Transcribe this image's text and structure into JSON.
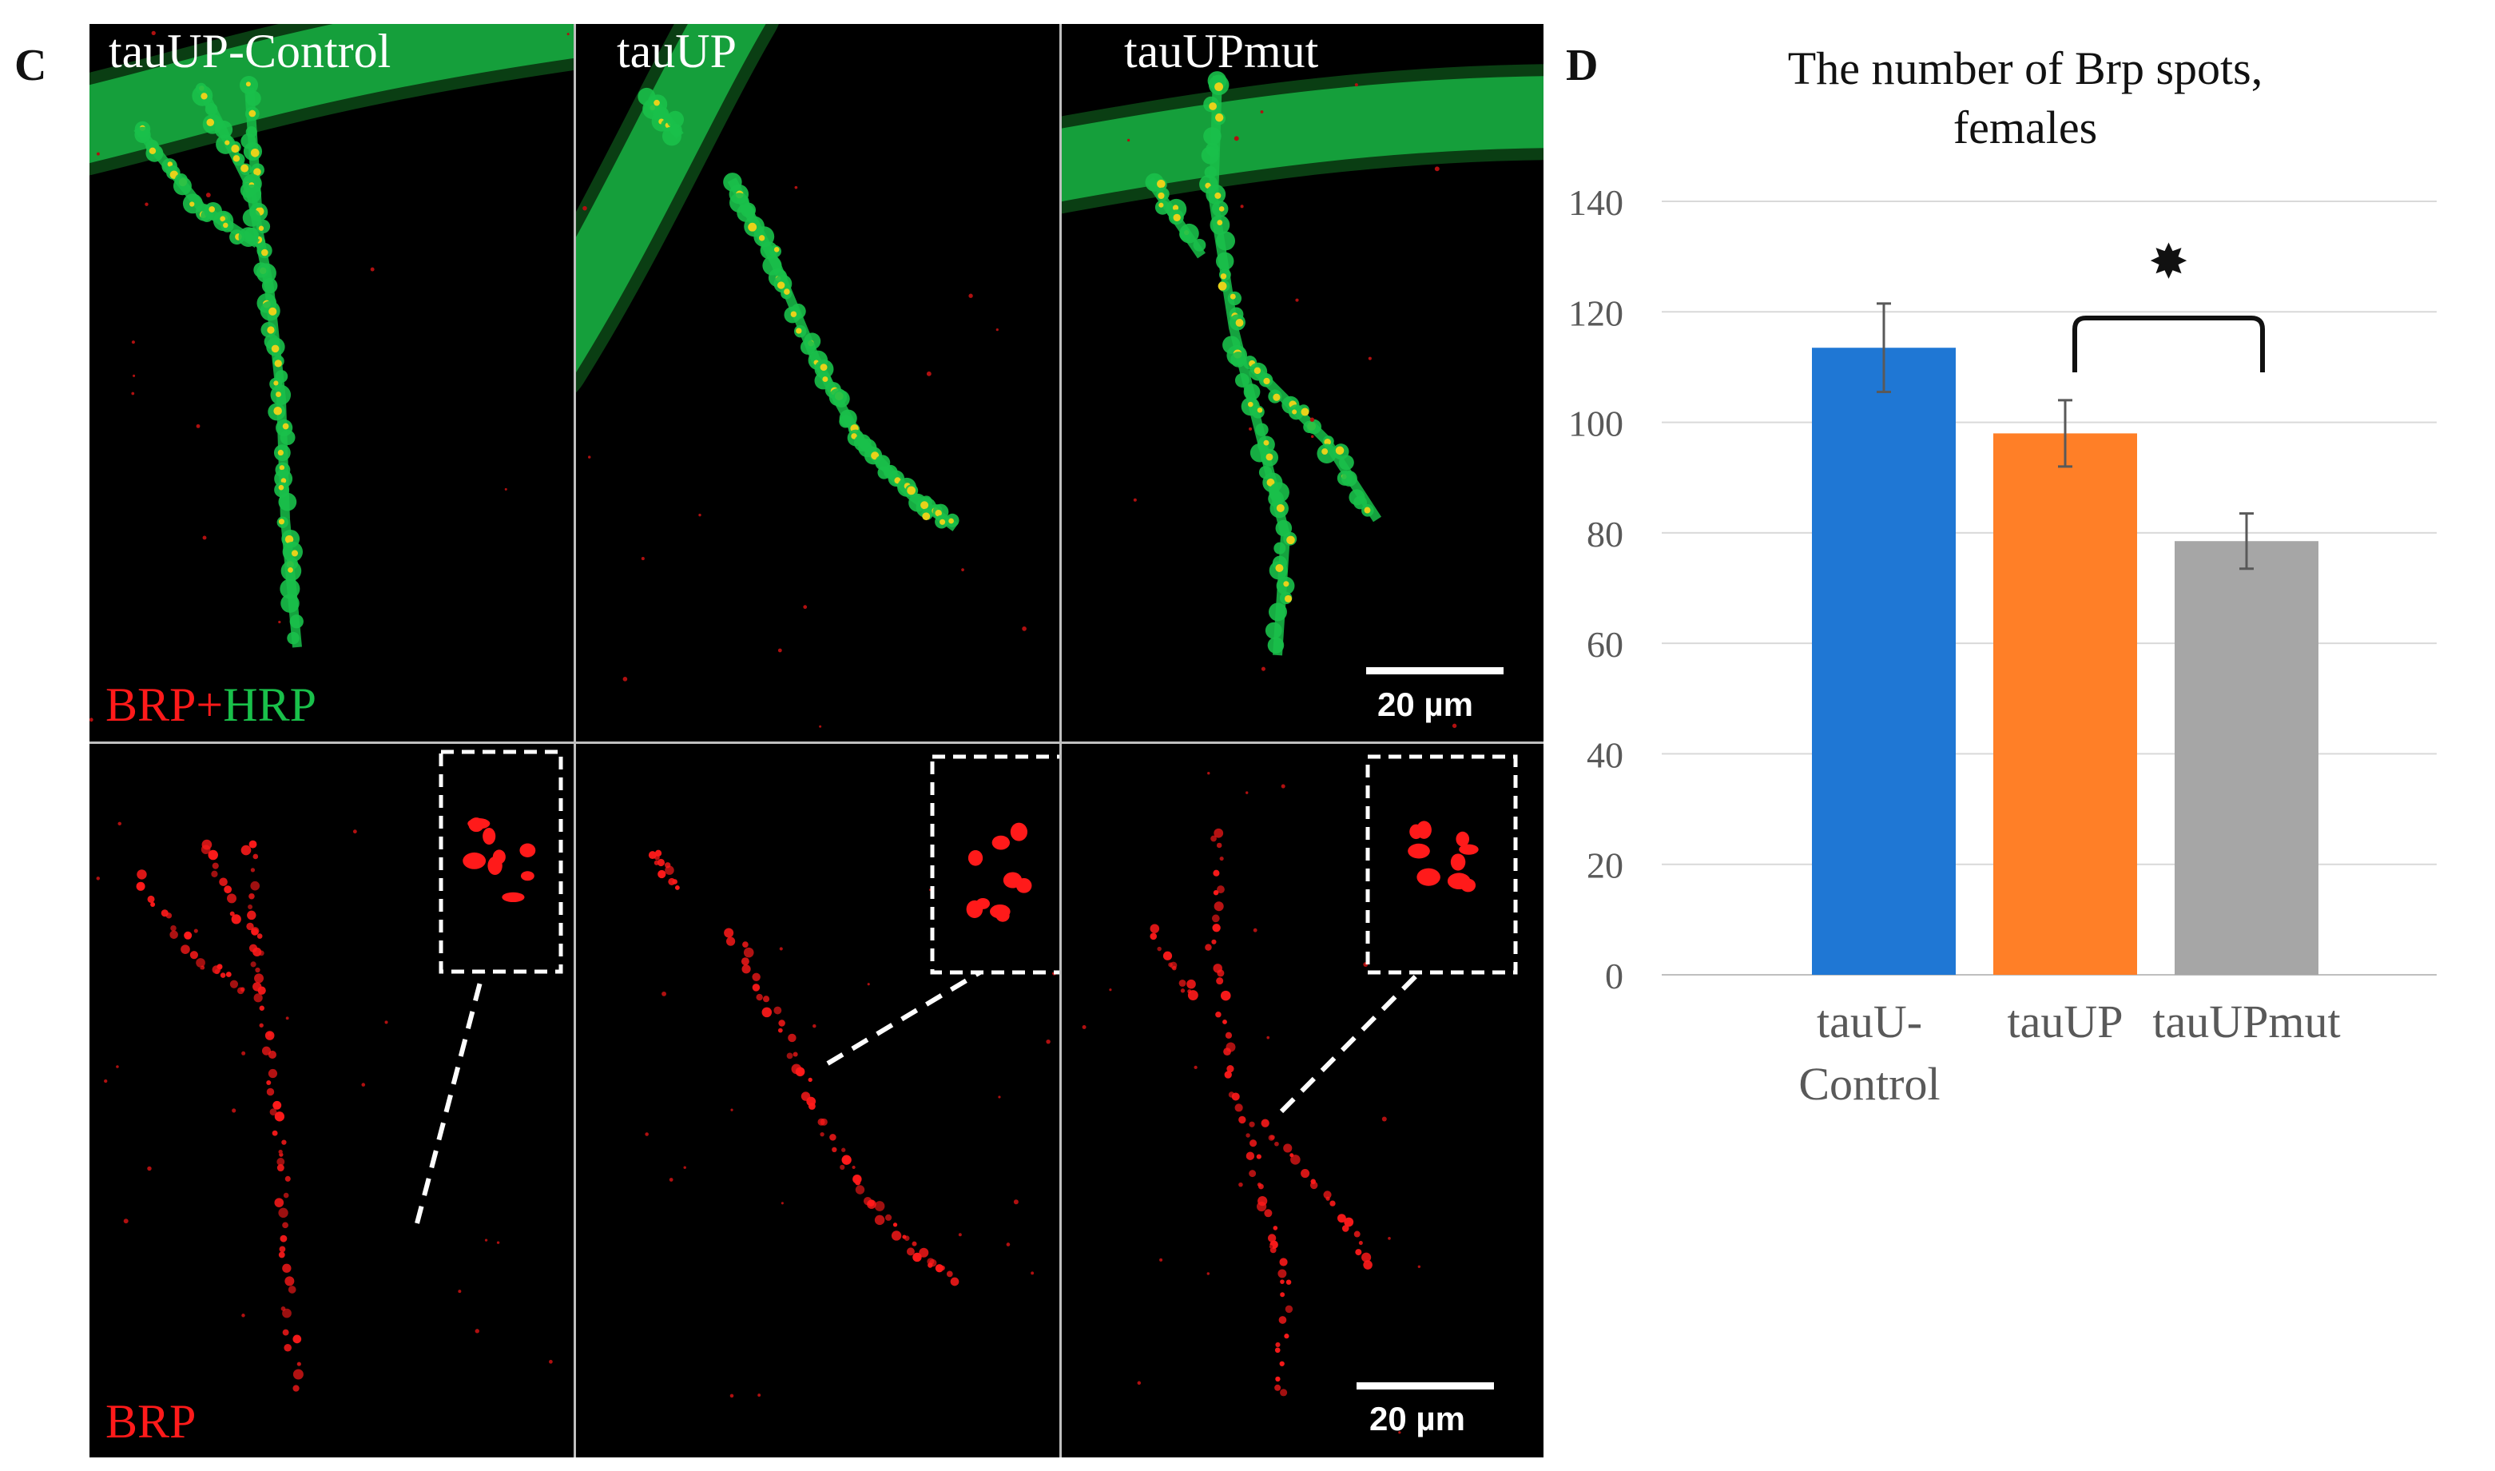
{
  "panels": {
    "left_letter": "C",
    "right_letter": "D"
  },
  "micrographs": {
    "columns": [
      "tauUP-Control",
      "tauUP",
      "tauUPmut"
    ],
    "top_stain": {
      "part1": "BRP",
      "part2": "+",
      "part3": "HRP"
    },
    "bottom_stain": "BRP",
    "scale_bar_top": "20 µm",
    "scale_bar_bottom": "20 µm",
    "colors": {
      "red_channel": "#ff1a1a",
      "green_channel": "#19c04a"
    }
  },
  "chart_data": {
    "type": "bar",
    "title": "The number of Brp spots, females",
    "categories": [
      "tauU-Control",
      "tauUP",
      "tauUPmut"
    ],
    "category_display": [
      [
        "tauU-",
        "Control"
      ],
      [
        "tauUP"
      ],
      [
        "tauUPmut"
      ]
    ],
    "values": [
      113.5,
      98,
      78.5
    ],
    "error": [
      8,
      6,
      5
    ],
    "colors": [
      "#1f77d4",
      "#ff7f27",
      "#a6a6a6"
    ],
    "ylim": [
      0,
      140
    ],
    "yticks": [
      0,
      20,
      40,
      60,
      80,
      100,
      120,
      140
    ],
    "grid": true,
    "significance": {
      "between": [
        "tauUP",
        "tauUPmut"
      ],
      "symbol": "✸"
    }
  }
}
